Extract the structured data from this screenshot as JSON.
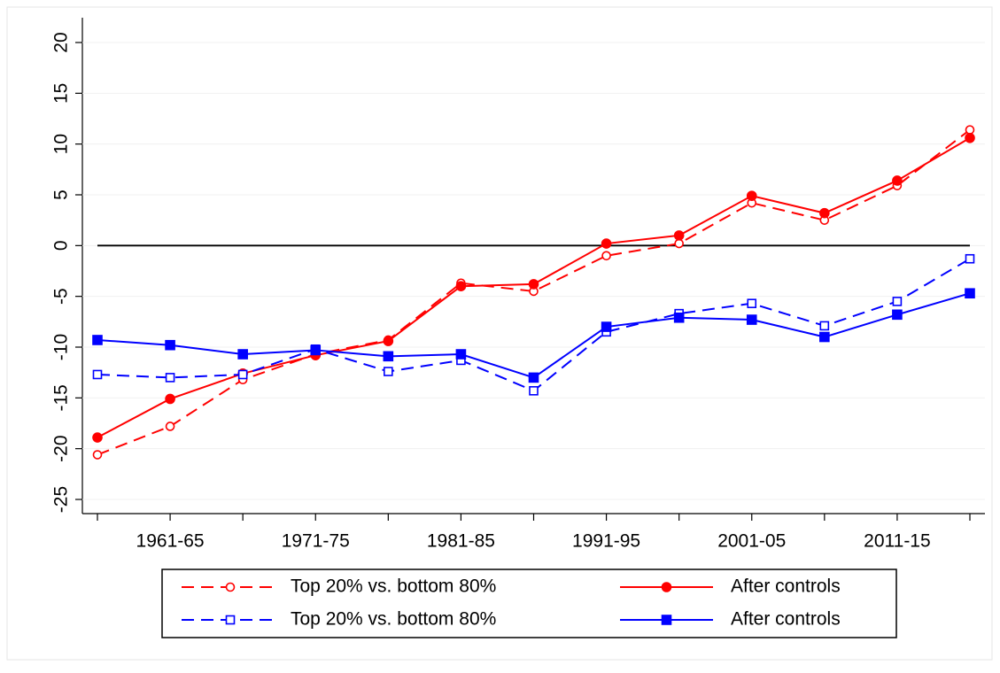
{
  "chart_data": {
    "type": "line",
    "categories": [
      null,
      "1961-65",
      null,
      "1971-75",
      null,
      "1981-85",
      null,
      "1991-95",
      null,
      "2001-05",
      null,
      "2011-15",
      null
    ],
    "ylim": [
      -25,
      20
    ],
    "yticks": [
      -25,
      -20,
      -15,
      -10,
      -5,
      0,
      5,
      10,
      15,
      20
    ],
    "hline": 0,
    "series": [
      {
        "name": "Top 20% vs. bottom 80%",
        "color": "#ff0000",
        "dash": true,
        "marker": "circle",
        "filled": false,
        "values": [
          -20.6,
          -17.8,
          -13.2,
          -10.7,
          -9.3,
          -3.7,
          -4.5,
          -1.0,
          0.2,
          4.2,
          2.5,
          5.9,
          11.4
        ]
      },
      {
        "name": "After controls",
        "color": "#ff0000",
        "dash": false,
        "marker": "circle",
        "filled": true,
        "values": [
          -18.9,
          -15.1,
          -12.6,
          -10.8,
          -9.4,
          -4.0,
          -3.8,
          0.2,
          1.0,
          4.9,
          3.2,
          6.4,
          10.6
        ]
      },
      {
        "name": "Top 20% vs. bottom 80%",
        "color": "#0000ff",
        "dash": true,
        "marker": "square",
        "filled": false,
        "values": [
          -12.7,
          -13.0,
          -12.7,
          -10.2,
          -12.4,
          -11.3,
          -14.3,
          -8.5,
          -6.7,
          -5.7,
          -7.9,
          -5.5,
          -1.3
        ]
      },
      {
        "name": "After controls",
        "color": "#0000ff",
        "dash": false,
        "marker": "square",
        "filled": true,
        "values": [
          -9.3,
          -9.8,
          -10.7,
          -10.3,
          -10.9,
          -10.7,
          -13.0,
          -8.0,
          -7.1,
          -7.3,
          -9.0,
          -6.8,
          -4.7
        ]
      }
    ]
  }
}
